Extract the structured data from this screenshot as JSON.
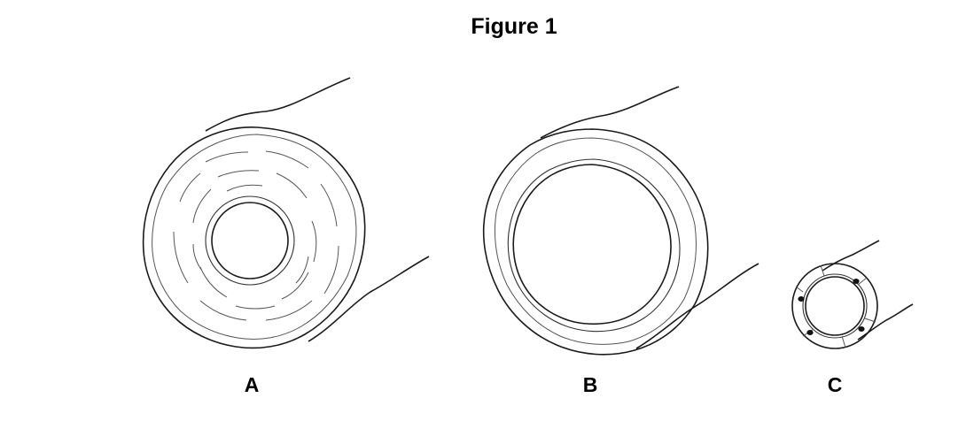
{
  "figure": {
    "title": "Figure 1"
  },
  "panels": [
    {
      "label": "A"
    },
    {
      "label": "B"
    },
    {
      "label": "C"
    }
  ]
}
